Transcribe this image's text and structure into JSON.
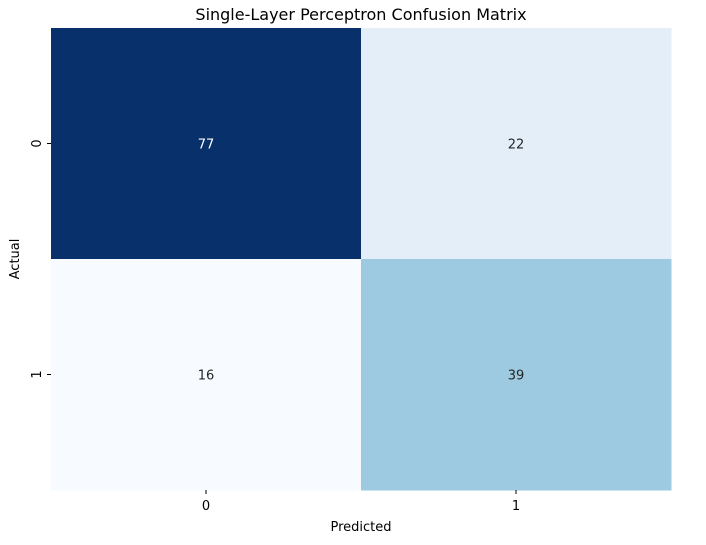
{
  "chart_data": {
    "type": "heatmap",
    "title": "Single-Layer Perceptron Confusion Matrix",
    "xlabel": "Predicted",
    "ylabel": "Actual",
    "x_categories": [
      "0",
      "1"
    ],
    "y_categories": [
      "0",
      "1"
    ],
    "values": [
      [
        77,
        22
      ],
      [
        16,
        39
      ]
    ],
    "cell_colors": [
      [
        "#08306b",
        "#e3eef9"
      ],
      [
        "#f7fbff",
        "#9ecae1"
      ]
    ],
    "annotation_colors": [
      [
        "#ffffff",
        "#262626"
      ],
      [
        "#262626",
        "#262626"
      ]
    ],
    "colormap": "Blues",
    "colorbar": false,
    "grid": false
  }
}
